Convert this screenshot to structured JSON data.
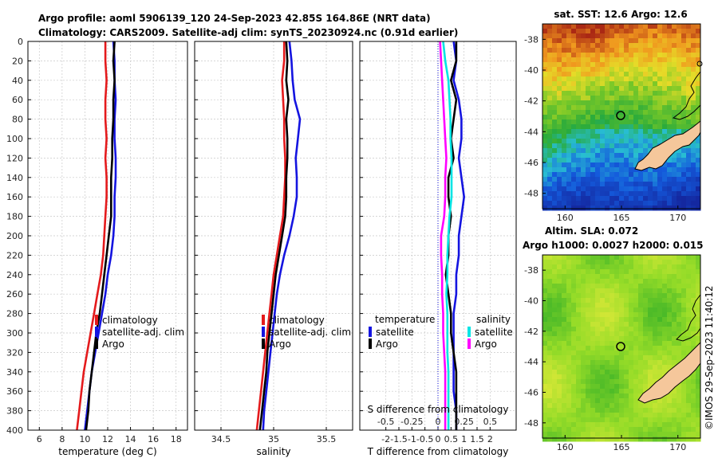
{
  "header": {
    "title_line1": "Argo profile: aoml 5906139_120 24-Sep-2023 42.85S 164.86E (NRT data)",
    "title_line2": "Climatology: CARS2009. Satellite-adj clim: synTS_20230924.nc (0.91d earlier)"
  },
  "colors": {
    "red": "#e41a1c",
    "blue": "#1414e0",
    "black": "#000000",
    "cyan": "#00e5e5",
    "magenta": "#ff00ff",
    "land": "#f5c79b"
  },
  "depth_axis": {
    "ticks": [
      "0",
      "20",
      "40",
      "60",
      "80",
      "100",
      "120",
      "140",
      "160",
      "180",
      "200",
      "220",
      "240",
      "260",
      "280",
      "300",
      "320",
      "340",
      "360",
      "380",
      "400"
    ]
  },
  "chart_data": [
    {
      "id": "temperature",
      "type": "line",
      "xlabel": "temperature (deg C)",
      "xlim": [
        5,
        19
      ],
      "ylim": [
        0,
        400
      ],
      "xticks": [
        "6",
        "8",
        "10",
        "12",
        "14",
        "16",
        "18"
      ],
      "xtick_values": [
        6,
        8,
        10,
        12,
        14,
        16,
        18
      ],
      "legend": [
        "climatology",
        "satellite-adj. clim",
        "Argo"
      ],
      "series": [
        {
          "name": "climatology",
          "color": "#e41a1c",
          "x": [
            11.8,
            11.8,
            11.9,
            11.8,
            11.8,
            11.9,
            11.8,
            11.9,
            11.9,
            11.8,
            11.7,
            11.6,
            11.4,
            11.1,
            10.8,
            10.5,
            10.2,
            9.9,
            9.7,
            9.5,
            9.3
          ],
          "y": [
            0,
            20,
            40,
            60,
            80,
            100,
            120,
            140,
            160,
            180,
            200,
            220,
            240,
            260,
            280,
            300,
            320,
            340,
            360,
            380,
            400
          ]
        },
        {
          "name": "satellite-adj. clim",
          "color": "#1414e0",
          "x": [
            12.5,
            12.6,
            12.6,
            12.7,
            12.6,
            12.6,
            12.7,
            12.7,
            12.6,
            12.6,
            12.5,
            12.3,
            12.0,
            11.8,
            11.5,
            11.2,
            10.9,
            10.6,
            10.4,
            10.2,
            10.0
          ],
          "y": [
            0,
            20,
            40,
            60,
            80,
            100,
            120,
            140,
            160,
            180,
            200,
            220,
            240,
            260,
            280,
            300,
            320,
            340,
            360,
            380,
            400
          ]
        },
        {
          "name": "Argo",
          "color": "#000000",
          "x": [
            12.6,
            12.5,
            12.6,
            12.5,
            12.5,
            12.4,
            12.4,
            12.3,
            12.3,
            12.3,
            12.1,
            11.9,
            11.7,
            11.5,
            11.3,
            11.0,
            10.8,
            10.6,
            10.4,
            10.3,
            10.1
          ],
          "y": [
            0,
            20,
            40,
            60,
            80,
            100,
            120,
            140,
            160,
            180,
            200,
            220,
            240,
            260,
            280,
            300,
            320,
            340,
            360,
            380,
            400
          ]
        }
      ]
    },
    {
      "id": "salinity",
      "type": "line",
      "xlabel": "salinity",
      "xlim": [
        34.25,
        35.75
      ],
      "ylim": [
        0,
        400
      ],
      "xticks": [
        "34.5",
        "35",
        "35.5"
      ],
      "xtick_values": [
        34.5,
        35.0,
        35.5
      ],
      "legend": [
        "climatology",
        "satellite-adj. clim",
        "Argo"
      ],
      "series": [
        {
          "name": "climatology",
          "color": "#e41a1c",
          "x": [
            35.1,
            35.1,
            35.08,
            35.09,
            35.1,
            35.1,
            35.11,
            35.11,
            35.1,
            35.09,
            35.06,
            35.03,
            35.0,
            34.98,
            34.96,
            34.94,
            34.92,
            34.9,
            34.88,
            34.86,
            34.84
          ],
          "y": [
            0,
            20,
            40,
            60,
            80,
            100,
            120,
            140,
            160,
            180,
            200,
            220,
            240,
            260,
            280,
            300,
            320,
            340,
            360,
            380,
            400
          ]
        },
        {
          "name": "satellite-adj. clim",
          "color": "#1414e0",
          "x": [
            35.15,
            35.17,
            35.18,
            35.2,
            35.25,
            35.23,
            35.21,
            35.22,
            35.22,
            35.19,
            35.15,
            35.1,
            35.06,
            35.03,
            35.01,
            34.99,
            34.97,
            34.95,
            34.93,
            34.91,
            34.9
          ],
          "y": [
            0,
            20,
            40,
            60,
            80,
            100,
            120,
            140,
            160,
            180,
            200,
            220,
            240,
            260,
            280,
            300,
            320,
            340,
            360,
            380,
            400
          ]
        },
        {
          "name": "Argo",
          "color": "#000000",
          "x": [
            35.12,
            35.13,
            35.12,
            35.14,
            35.12,
            35.13,
            35.13,
            35.12,
            35.12,
            35.11,
            35.08,
            35.05,
            35.02,
            35.0,
            34.98,
            34.96,
            34.94,
            34.93,
            34.91,
            34.89,
            34.87
          ],
          "y": [
            0,
            20,
            40,
            60,
            80,
            100,
            120,
            140,
            160,
            180,
            200,
            220,
            240,
            260,
            280,
            300,
            320,
            340,
            360,
            380,
            400
          ]
        }
      ]
    },
    {
      "id": "difference",
      "type": "line",
      "xlabel": "T difference from climatology",
      "xlabel_top": "S difference from climatology",
      "xlim": [
        -3,
        3
      ],
      "ylim": [
        0,
        400
      ],
      "xticks": [
        "-2",
        "-1.5",
        "-1",
        "-0.5",
        "0",
        "0.5",
        "1",
        "1.5",
        "2"
      ],
      "xtick_values": [
        -2,
        -1.5,
        -1,
        -0.5,
        0,
        0.5,
        1,
        1.5,
        2
      ],
      "xticks_top": [
        "-0.5",
        "-0.25",
        "0",
        "0.25",
        "0.5"
      ],
      "xtick_top_values": [
        -0.5,
        -0.25,
        0,
        0.25,
        0.5
      ],
      "legend_titles": [
        "temperature",
        "salinity"
      ],
      "legend_temperature": [
        "satellite",
        "Argo"
      ],
      "legend_salinity": [
        "satellite",
        "Argo"
      ],
      "series": [
        {
          "name": "temperature satellite",
          "color": "#1414e0",
          "x": [
            0.6,
            0.7,
            0.6,
            0.8,
            0.9,
            0.9,
            0.8,
            0.9,
            1.0,
            0.9,
            0.8,
            0.8,
            0.7,
            0.7,
            0.6,
            0.6,
            0.6,
            0.6,
            0.6,
            0.7,
            0.7
          ],
          "y": [
            0,
            20,
            40,
            60,
            80,
            100,
            120,
            140,
            160,
            180,
            200,
            220,
            240,
            260,
            280,
            300,
            320,
            340,
            360,
            380,
            400
          ]
        },
        {
          "name": "temperature Argo",
          "color": "#000000",
          "x": [
            0.7,
            0.7,
            0.5,
            0.7,
            0.6,
            0.5,
            0.6,
            0.4,
            0.4,
            0.5,
            0.4,
            0.4,
            0.3,
            0.4,
            0.5,
            0.5,
            0.6,
            0.7,
            0.7,
            0.7,
            0.7
          ],
          "y": [
            0,
            20,
            40,
            60,
            80,
            100,
            120,
            140,
            160,
            180,
            200,
            220,
            240,
            260,
            280,
            300,
            320,
            340,
            360,
            380,
            400
          ]
        },
        {
          "name": "salinity satellite",
          "color": "#00e5e5",
          "x": [
            0.05,
            0.07,
            0.1,
            0.11,
            0.12,
            0.12,
            0.13,
            0.13,
            0.13,
            0.11,
            0.1,
            0.09,
            0.09,
            0.08,
            0.09,
            0.09,
            0.09,
            0.1,
            0.1,
            0.1,
            0.1
          ],
          "y": [
            0,
            20,
            40,
            60,
            80,
            100,
            120,
            140,
            160,
            180,
            200,
            220,
            240,
            260,
            280,
            300,
            320,
            340,
            360,
            380,
            400
          ]
        },
        {
          "name": "salinity Argo",
          "color": "#ff00ff",
          "x": [
            0.02,
            0.03,
            0.04,
            0.05,
            0.06,
            0.07,
            0.08,
            0.07,
            0.07,
            0.06,
            0.03,
            0.03,
            0.04,
            0.04,
            0.05,
            0.05,
            0.06,
            0.07,
            0.07,
            0.07,
            0.07
          ],
          "y": [
            0,
            20,
            40,
            60,
            80,
            100,
            120,
            140,
            160,
            180,
            200,
            220,
            240,
            260,
            280,
            300,
            320,
            340,
            360,
            380,
            400
          ]
        }
      ]
    },
    {
      "id": "sst_map",
      "type": "heatmap",
      "title": "sat. SST: 12.6 Argo: 12.6",
      "xticks": [
        "160",
        "165",
        "170"
      ],
      "xtick_values": [
        160,
        165,
        170
      ],
      "yticks": [
        "-38",
        "-40",
        "-42",
        "-44",
        "-46",
        "-48"
      ],
      "ytick_values": [
        -38,
        -40,
        -42,
        -44,
        -46,
        -48
      ],
      "xlim": [
        158,
        172
      ],
      "ylim": [
        -49,
        -37
      ],
      "marker": {
        "lon": 164.86,
        "lat": -42.85
      }
    },
    {
      "id": "sla_map",
      "type": "heatmap",
      "title": "Altim. SLA: 0.072",
      "subtitle": "Argo h1000: 0.0027 h2000: 0.015",
      "xticks": [
        "160",
        "165",
        "170"
      ],
      "xtick_values": [
        160,
        165,
        170
      ],
      "yticks": [
        "-38",
        "-40",
        "-42",
        "-44",
        "-46",
        "-48"
      ],
      "ytick_values": [
        -38,
        -40,
        -42,
        -44,
        -46,
        -48
      ],
      "xlim": [
        158,
        172
      ],
      "ylim": [
        -49,
        -37
      ],
      "marker": {
        "lon": 164.86,
        "lat": -42.85
      }
    }
  ],
  "watermark": "©IMOS 29-Sep-2023 11:40:12"
}
